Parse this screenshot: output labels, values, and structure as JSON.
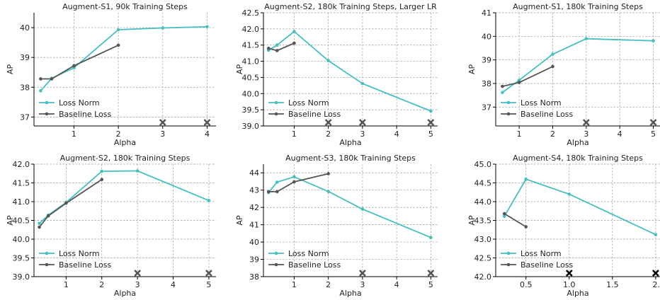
{
  "figure": {
    "xlabel": "Alpha",
    "ylabel": "AP"
  },
  "colors": {
    "loss_norm": "#45bfc0",
    "baseline": "#555555",
    "grid": "#9a9a9a",
    "x_dark": "#555555",
    "x_black": "#000000"
  },
  "chart_data": [
    {
      "type": "line",
      "title": "Augment-S1, 90k Training Steps",
      "xlabel": "Alpha",
      "ylabel": "AP",
      "xlim": [
        0.1,
        4.2
      ],
      "ylim": [
        36.7,
        40.5
      ],
      "xticks": [
        1,
        2,
        3,
        4
      ],
      "xtick_labels": [
        "1",
        "2",
        "3",
        "4"
      ],
      "yticks": [
        37,
        38,
        39,
        40
      ],
      "ytick_labels": [
        "37",
        "38",
        "39",
        "40"
      ],
      "grid": true,
      "legend_position": "lower-left",
      "series": [
        {
          "name": "Loss Norm",
          "color_key": "loss_norm",
          "x": [
            0.25,
            0.5,
            1,
            2,
            3,
            4
          ],
          "y": [
            37.88,
            38.3,
            38.65,
            39.93,
            39.99,
            40.03
          ]
        },
        {
          "name": "Baseline Loss",
          "color_key": "baseline",
          "x": [
            0.25,
            0.5,
            1,
            2
          ],
          "y": [
            38.28,
            38.28,
            38.72,
            39.41
          ]
        }
      ],
      "failure_markers": {
        "x": [
          3,
          4
        ],
        "color_key": "x_dark"
      }
    },
    {
      "type": "line",
      "title": "Augment-S2, 180k Training Steps, Larger LR",
      "xlabel": "Alpha",
      "ylabel": "AP",
      "xlim": [
        0.1,
        5.2
      ],
      "ylim": [
        39.0,
        42.5
      ],
      "xticks": [
        1,
        2,
        3,
        4,
        5
      ],
      "xtick_labels": [
        "1",
        "2",
        "3",
        "4",
        "5"
      ],
      "yticks": [
        39.0,
        39.5,
        40.0,
        40.5,
        41.0,
        41.5,
        42.0,
        42.5
      ],
      "ytick_labels": [
        "39.0",
        "39.5",
        "40.0",
        "40.5",
        "41.0",
        "41.5",
        "42.0",
        "42.5"
      ],
      "grid": true,
      "legend_position": "lower-left",
      "series": [
        {
          "name": "Loss Norm",
          "color_key": "loss_norm",
          "x": [
            0.25,
            0.5,
            1,
            2,
            3,
            5
          ],
          "y": [
            41.34,
            41.5,
            41.92,
            41.02,
            40.31,
            39.46
          ]
        },
        {
          "name": "Baseline Loss",
          "color_key": "baseline",
          "x": [
            0.25,
            0.5,
            1
          ],
          "y": [
            41.4,
            41.33,
            41.56
          ]
        }
      ],
      "failure_markers": {
        "x": [
          2,
          3,
          5
        ],
        "color_key": "x_dark"
      }
    },
    {
      "type": "line",
      "title": "Augment-S1, 180k Training Steps",
      "xlabel": "Alpha",
      "ylabel": "AP",
      "xlim": [
        0.3,
        5.2
      ],
      "ylim": [
        36.2,
        41.0
      ],
      "xticks": [
        1,
        2,
        3,
        4,
        5
      ],
      "xtick_labels": [
        "1",
        "2",
        "3",
        "4",
        "5"
      ],
      "yticks": [
        37,
        38,
        39,
        40,
        41
      ],
      "ytick_labels": [
        "37",
        "38",
        "39",
        "40",
        "41"
      ],
      "grid": true,
      "legend_position": "lower-left",
      "series": [
        {
          "name": "Loss Norm",
          "color_key": "loss_norm",
          "x": [
            0.5,
            1,
            2,
            3,
            5
          ],
          "y": [
            37.62,
            38.14,
            39.24,
            39.9,
            39.81
          ]
        },
        {
          "name": "Baseline Loss",
          "color_key": "baseline",
          "x": [
            0.5,
            1,
            2
          ],
          "y": [
            37.88,
            38.04,
            38.72
          ]
        }
      ],
      "failure_markers": {
        "x": [
          3,
          5
        ],
        "color_key": "x_dark"
      }
    },
    {
      "type": "line",
      "title": "Augment-S2, 180k Training Steps",
      "xlabel": "Alpha",
      "ylabel": "AP",
      "xlim": [
        0.1,
        5.2
      ],
      "ylim": [
        39.0,
        42.0
      ],
      "xticks": [
        1,
        2,
        3,
        4,
        5
      ],
      "xtick_labels": [
        "1",
        "2",
        "3",
        "4",
        "5"
      ],
      "yticks": [
        39.0,
        39.5,
        40.0,
        40.5,
        41.0,
        41.5,
        42.0
      ],
      "ytick_labels": [
        "39.0",
        "39.5",
        "40.0",
        "40.5",
        "41.0",
        "41.5",
        "42.0"
      ],
      "grid": true,
      "legend_position": "lower-left",
      "series": [
        {
          "name": "Loss Norm",
          "color_key": "loss_norm",
          "x": [
            0.25,
            0.5,
            1,
            2,
            3,
            5
          ],
          "y": [
            40.42,
            40.64,
            40.98,
            41.81,
            41.82,
            41.03
          ]
        },
        {
          "name": "Baseline Loss",
          "color_key": "baseline",
          "x": [
            0.25,
            0.5,
            1,
            2
          ],
          "y": [
            40.32,
            40.62,
            40.96,
            41.59
          ]
        }
      ],
      "failure_markers": {
        "x": [
          3,
          5
        ],
        "color_key": "x_dark"
      }
    },
    {
      "type": "line",
      "title": "Augment-S3, 180k Training Steps",
      "xlabel": "Alpha",
      "ylabel": "AP",
      "xlim": [
        0.1,
        5.2
      ],
      "ylim": [
        38.0,
        44.5
      ],
      "xticks": [
        1,
        2,
        3,
        4,
        5
      ],
      "xtick_labels": [
        "1",
        "2",
        "3",
        "4",
        "5"
      ],
      "yticks": [
        38,
        39,
        40,
        41,
        42,
        43,
        44
      ],
      "ytick_labels": [
        "38",
        "39",
        "40",
        "41",
        "42",
        "43",
        "44"
      ],
      "grid": true,
      "legend_position": "lower-left",
      "series": [
        {
          "name": "Loss Norm",
          "color_key": "loss_norm",
          "x": [
            0.25,
            0.5,
            1,
            2,
            3,
            5
          ],
          "y": [
            42.86,
            43.46,
            43.77,
            42.92,
            41.9,
            40.26
          ]
        },
        {
          "name": "Baseline Loss",
          "color_key": "baseline",
          "x": [
            0.25,
            0.5,
            1,
            2
          ],
          "y": [
            42.91,
            42.91,
            43.48,
            43.95
          ]
        }
      ],
      "failure_markers": {
        "x": [
          3,
          5
        ],
        "color_key": "x_dark"
      }
    },
    {
      "type": "line",
      "title": "Augment-S4, 180k Training Steps",
      "xlabel": "Alpha",
      "ylabel": "AP",
      "xlim": [
        0.15,
        2.05
      ],
      "ylim": [
        42.0,
        45.0
      ],
      "xticks": [
        0.5,
        1.0,
        1.5,
        2.0
      ],
      "xtick_labels": [
        "0.5",
        "1.0",
        "1.5",
        "2."
      ],
      "yticks": [
        42.0,
        42.5,
        43.0,
        43.5,
        44.0,
        44.5,
        45.0
      ],
      "ytick_labels": [
        "42.0",
        "42.5",
        "43.0",
        "43.5",
        "44.0",
        "44.5",
        "45.0"
      ],
      "grid": true,
      "legend_position": "lower-left",
      "series": [
        {
          "name": "Loss Norm",
          "color_key": "loss_norm",
          "x": [
            0.25,
            0.5,
            1,
            2
          ],
          "y": [
            43.61,
            44.6,
            44.2,
            43.12
          ]
        },
        {
          "name": "Baseline Loss",
          "color_key": "baseline",
          "x": [
            0.25,
            0.5
          ],
          "y": [
            43.68,
            43.33
          ]
        }
      ],
      "failure_markers": {
        "x": [
          1,
          2
        ],
        "color_key": "x_black"
      }
    }
  ]
}
